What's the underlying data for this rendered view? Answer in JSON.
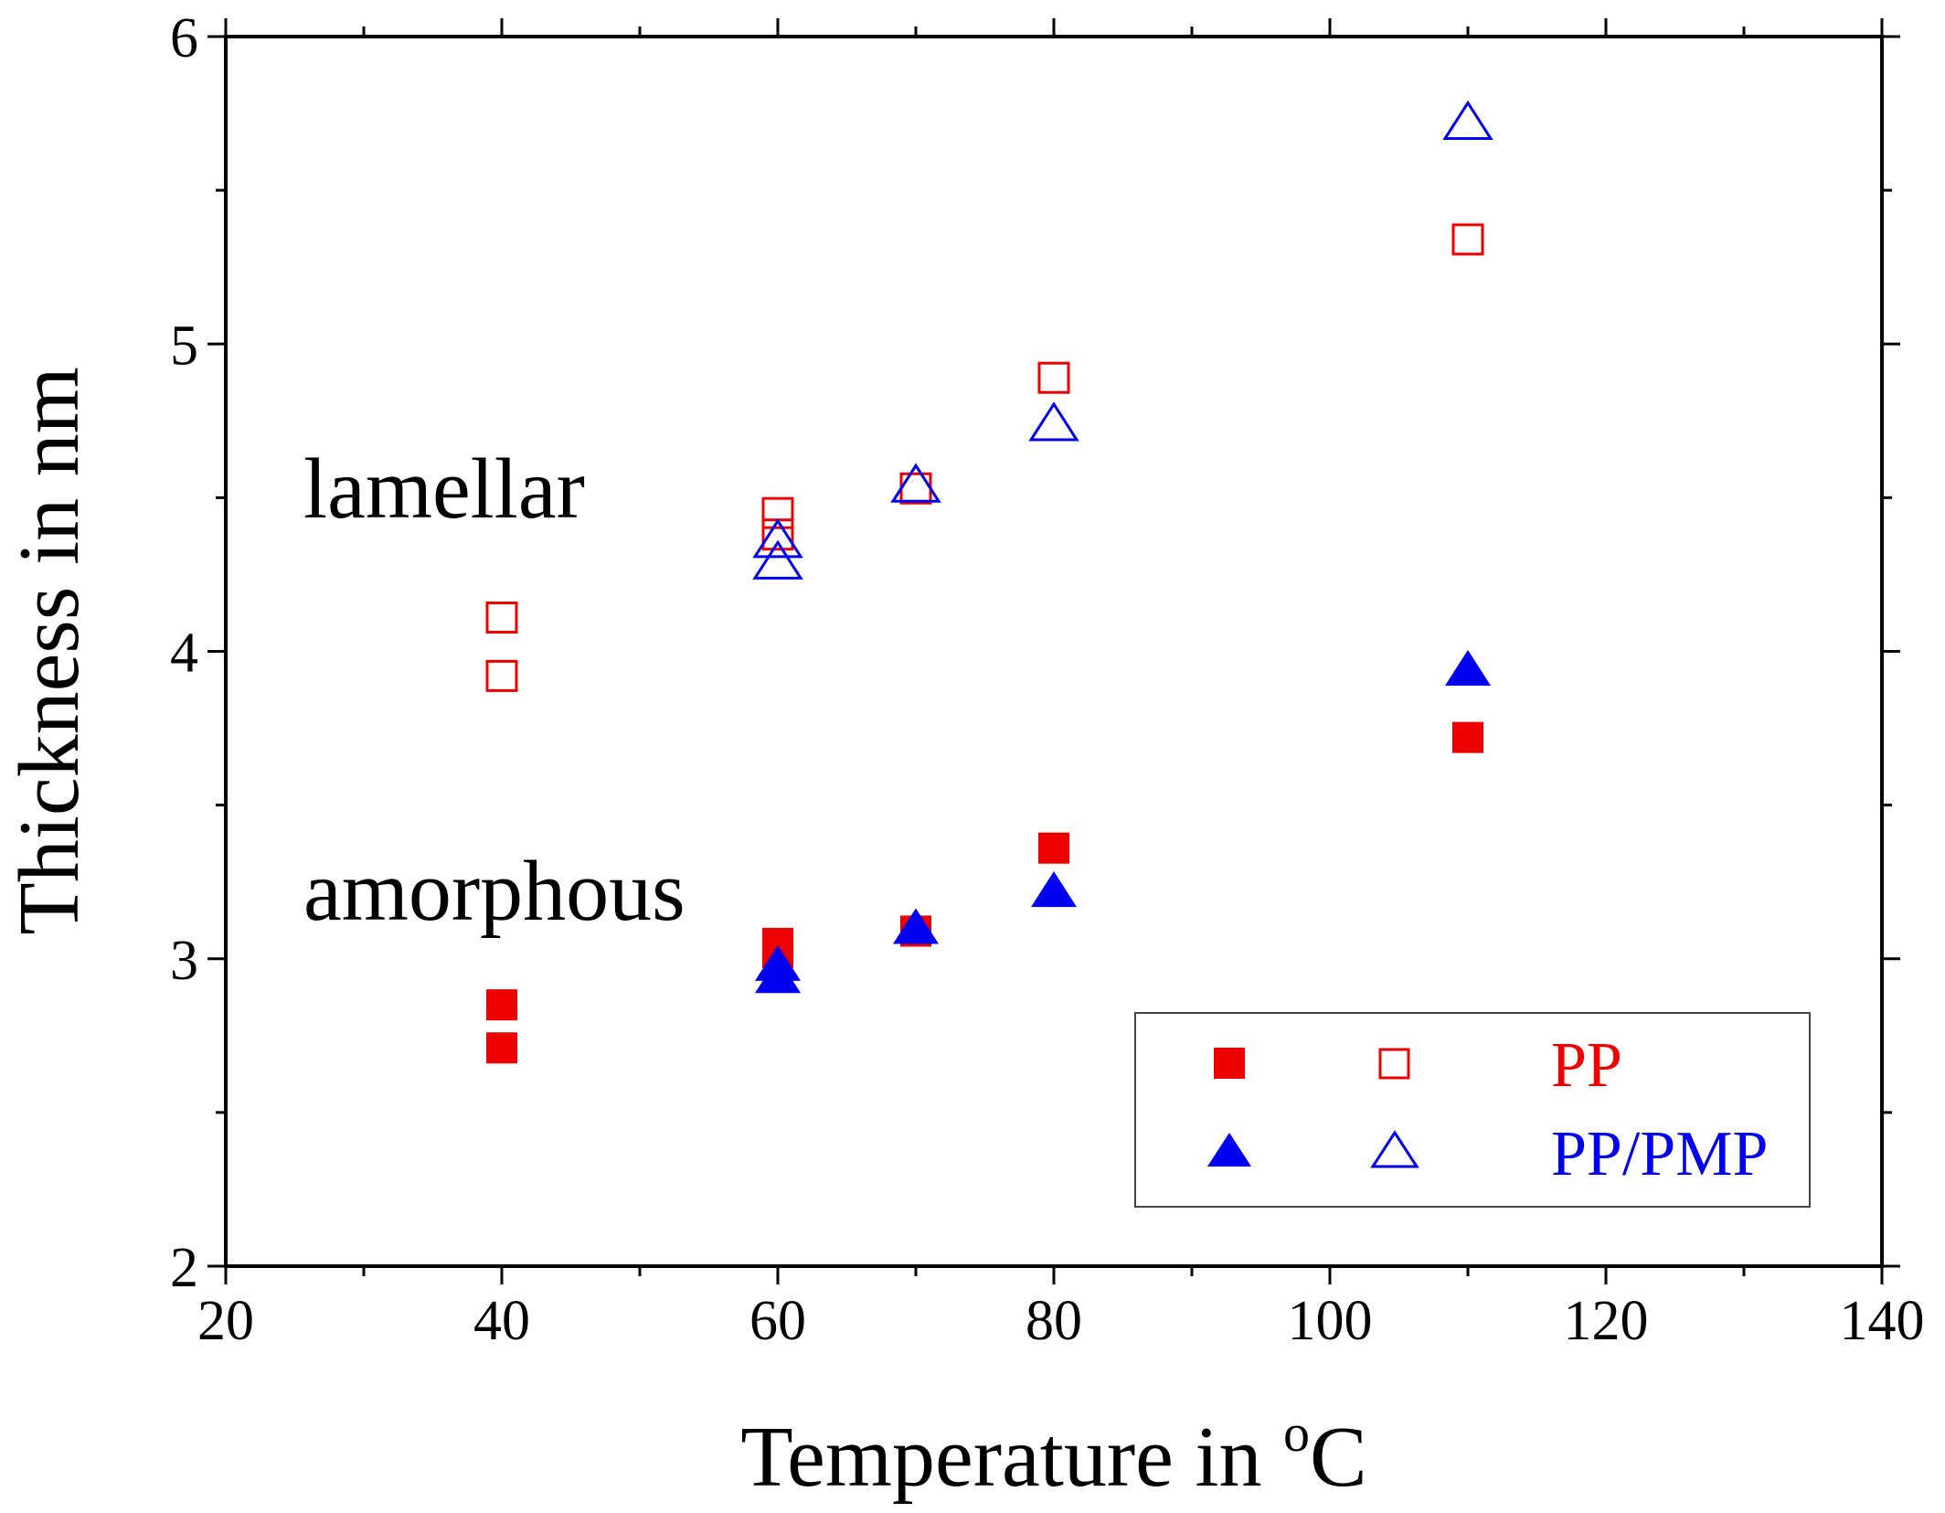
{
  "chart_data": {
    "type": "scatter",
    "title": "",
    "xlabel": "Temperature in ",
    "xlabel_sup": "o",
    "xlabel_unit": "C",
    "ylabel": "Thickness in nm",
    "xlim": [
      20,
      140
    ],
    "ylim": [
      2,
      6
    ],
    "x_ticks": [
      20,
      40,
      60,
      80,
      100,
      120,
      140
    ],
    "y_ticks": [
      2,
      3,
      4,
      5,
      6
    ],
    "x_minor_step": 10,
    "y_minor_step": 0.5,
    "grid": false,
    "annotations": [
      {
        "text": "lamellar",
        "x": 26,
        "y": 4.5
      },
      {
        "text": "amorphous",
        "x": 26,
        "y": 3.2
      }
    ],
    "legend": {
      "placement": "bottom-right",
      "entries": [
        {
          "label": "PP",
          "color": "#ee0000"
        },
        {
          "label": "PP/PMP",
          "color": "#0000ee"
        }
      ]
    },
    "series": [
      {
        "group": "PP",
        "kind": "amorphous",
        "marker": "filled-square",
        "color": "#ee0000",
        "x": [
          40,
          40,
          60,
          60,
          70,
          80,
          110
        ],
        "y": [
          2.71,
          2.85,
          3.02,
          3.05,
          3.09,
          3.36,
          3.72
        ]
      },
      {
        "group": "PP",
        "kind": "lamellar",
        "marker": "open-square",
        "color": "#ee0000",
        "x": [
          40,
          40,
          60,
          60,
          70,
          80,
          110
        ],
        "y": [
          3.92,
          4.11,
          4.38,
          4.45,
          4.53,
          4.89,
          5.34
        ]
      },
      {
        "group": "PP/PMP",
        "kind": "amorphous",
        "marker": "filled-triangle",
        "color": "#0000ee",
        "x": [
          60,
          60,
          70,
          80,
          110
        ],
        "y": [
          2.93,
          2.97,
          3.09,
          3.21,
          3.93
        ]
      },
      {
        "group": "PP/PMP",
        "kind": "lamellar",
        "marker": "open-triangle",
        "color": "#0000ee",
        "x": [
          60,
          60,
          70,
          80,
          110
        ],
        "y": [
          4.28,
          4.35,
          4.53,
          4.73,
          5.71
        ]
      }
    ]
  }
}
